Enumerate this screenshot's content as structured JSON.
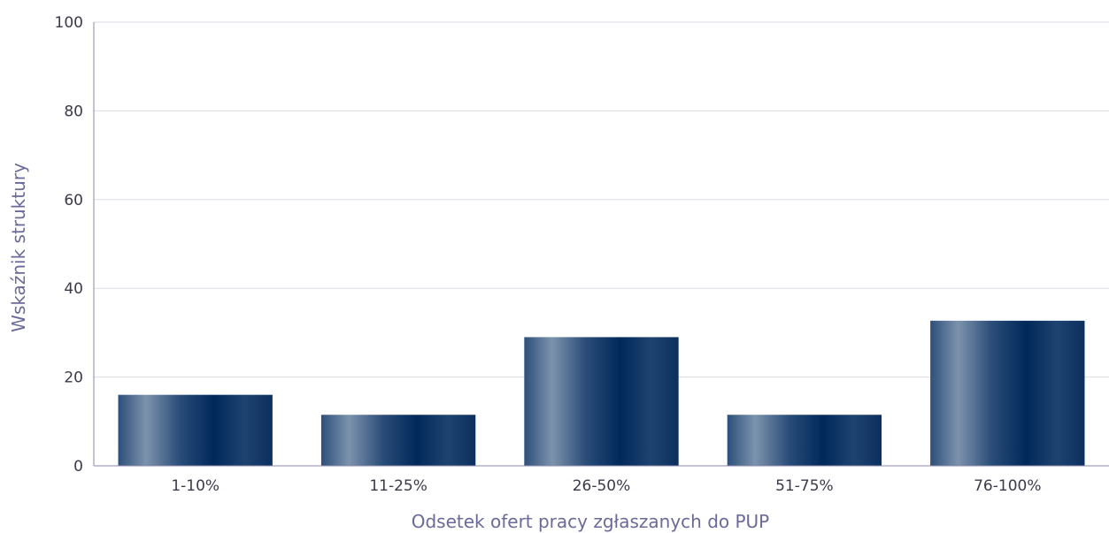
{
  "chart_data": {
    "type": "bar",
    "title": "",
    "xlabel": "Odsetek ofert pracy zgłaszanych do PUP",
    "ylabel": "Wskaźnik struktury",
    "categories": [
      "1-10%",
      "11-25%",
      "26-50%",
      "51-75%",
      "76-100%"
    ],
    "values": [
      16,
      11.5,
      29,
      11.5,
      32.7
    ],
    "ylim": [
      0,
      100
    ],
    "yticks": [
      "0",
      "20",
      "40",
      "60",
      "80",
      "100"
    ],
    "grid": true,
    "colors": {
      "bar_dark": "#002f66",
      "bar_light": "#7c93ad",
      "grid": "#dcdce6",
      "axis": "#8a8aa8"
    }
  }
}
